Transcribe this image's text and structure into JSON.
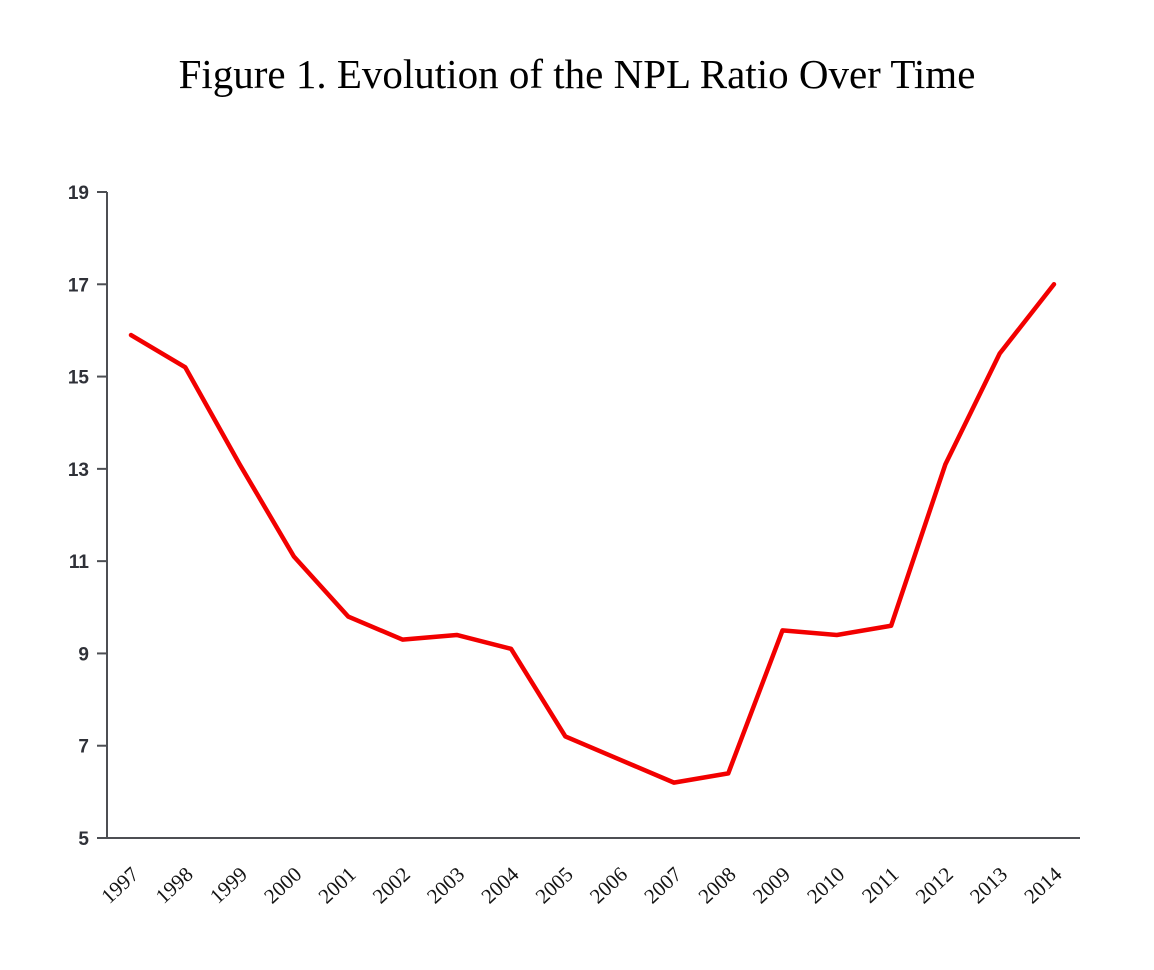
{
  "title": "Figure 1. Evolution of the NPL Ratio Over Time",
  "chart_data": {
    "type": "line",
    "title": "Figure 1. Evolution of the NPL Ratio Over Time",
    "categories": [
      "1997",
      "1998",
      "1999",
      "2000",
      "2001",
      "2002",
      "2003",
      "2004",
      "2005",
      "2006",
      "2007",
      "2008",
      "2009",
      "2010",
      "2011",
      "2012",
      "2013",
      "2014"
    ],
    "series": [
      {
        "name": "NPL ratio",
        "values": [
          15.9,
          15.2,
          13.1,
          11.1,
          9.8,
          9.3,
          9.4,
          9.1,
          7.2,
          6.7,
          6.2,
          6.4,
          9.5,
          9.4,
          9.6,
          13.1,
          15.5,
          17.0
        ]
      }
    ],
    "xlabel": "",
    "ylabel": "",
    "ylim": [
      5,
      19
    ],
    "yticks": [
      5,
      7,
      9,
      11,
      13,
      15,
      17,
      19
    ],
    "grid": false,
    "legend_position": "none",
    "line_color": "#f20000",
    "axis_color": "#4d4f53",
    "y_tick_label_color": "#2f3138",
    "x_tick_label_color": "#141414",
    "title_color": "#000000",
    "background_color": "#ffffff"
  }
}
